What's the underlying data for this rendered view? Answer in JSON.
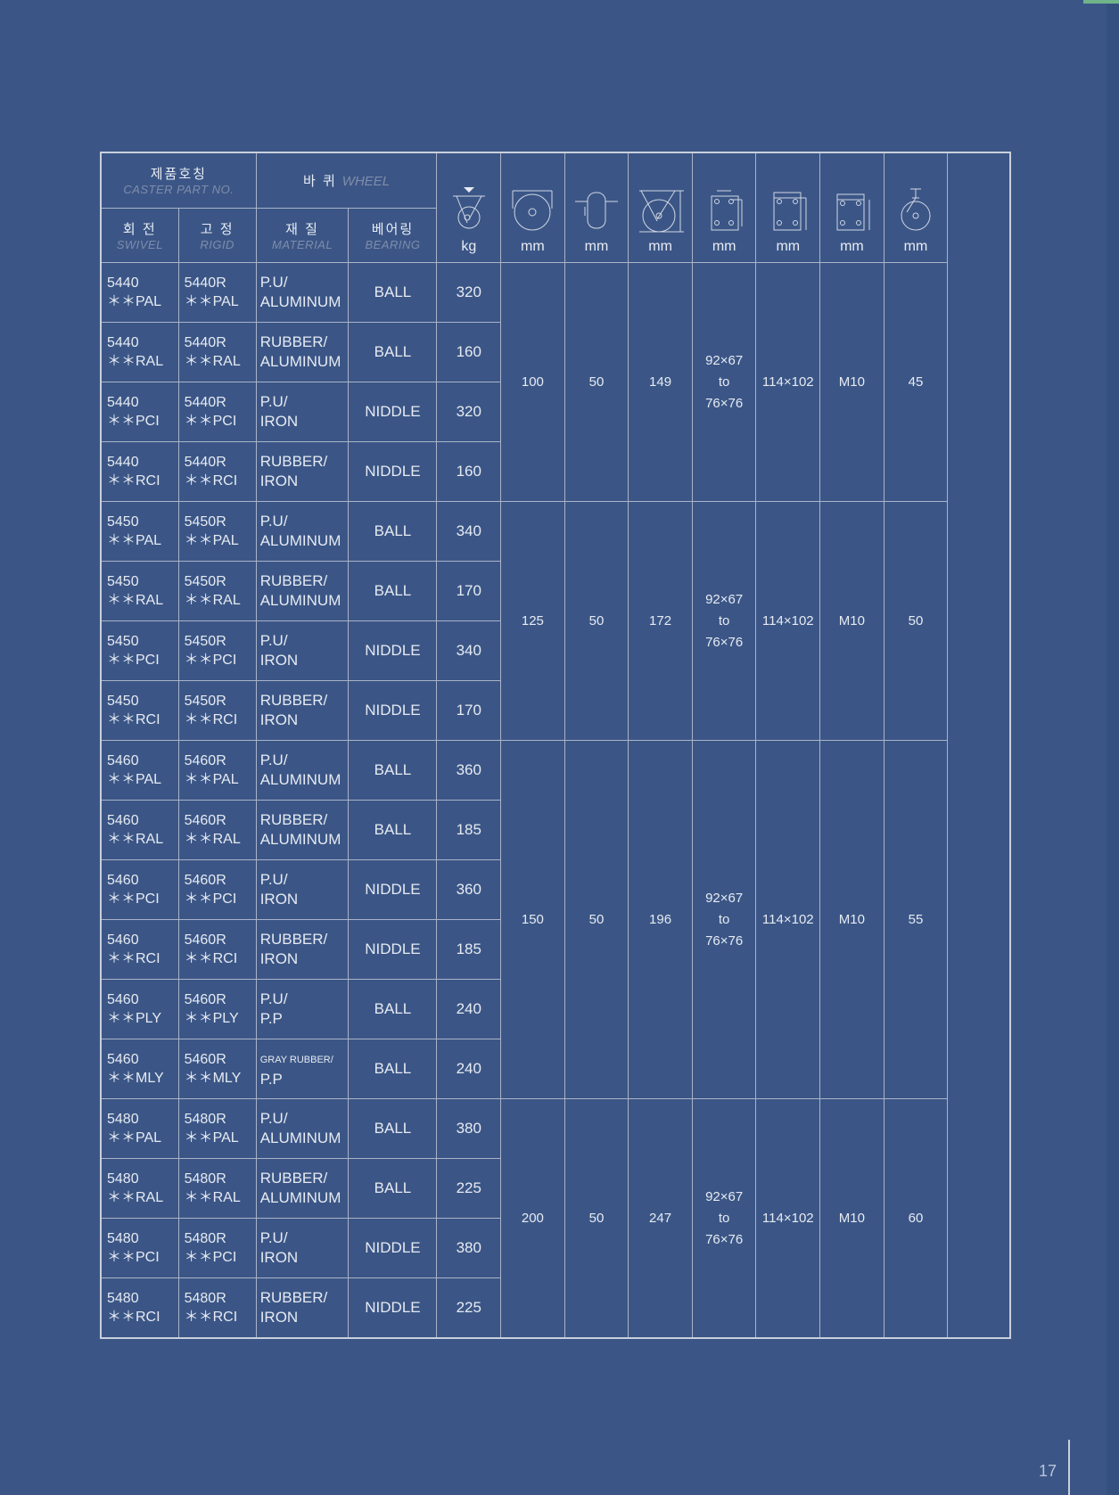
{
  "header": {
    "part_no_ko": "제품호칭",
    "part_no_en": "CASTER PART NO.",
    "wheel_ko": "바 퀴",
    "wheel_en": "WHEEL",
    "swivel_ko": "회 전",
    "swivel_en": "SWIVEL",
    "rigid_ko": "고 정",
    "rigid_en": "RIGID",
    "material_ko": "재 질",
    "material_en": "MATERIAL",
    "bearing_ko": "베어링",
    "bearing_en": "BEARING",
    "units": [
      "kg",
      "mm",
      "mm",
      "mm",
      "mm",
      "mm",
      "mm",
      "mm"
    ],
    "unit_icons": [
      "load-capacity-icon",
      "wheel-diameter-icon",
      "wheel-width-icon",
      "overall-height-icon",
      "bolt-hole-spacing-icon",
      "top-plate-size-icon",
      "bolt-size-icon",
      "swivel-radius-icon"
    ]
  },
  "rows": [
    {
      "swivel": [
        "5440",
        "＊＊PAL"
      ],
      "rigid": [
        "5440R",
        "＊＊PAL"
      ],
      "material": [
        "P.U/",
        "ALUMINUM"
      ],
      "bearing": "BALL",
      "load": "320"
    },
    {
      "swivel": [
        "5440",
        "＊＊RAL"
      ],
      "rigid": [
        "5440R",
        "＊＊RAL"
      ],
      "material": [
        "RUBBER/",
        "ALUMINUM"
      ],
      "bearing": "BALL",
      "load": "160"
    },
    {
      "swivel": [
        "5440",
        "＊＊PCI"
      ],
      "rigid": [
        "5440R",
        "＊＊PCI"
      ],
      "material": [
        "P.U/",
        "IRON"
      ],
      "bearing": "NIDDLE",
      "load": "320"
    },
    {
      "swivel": [
        "5440",
        "＊＊RCI"
      ],
      "rigid": [
        "5440R",
        "＊＊RCI"
      ],
      "material": [
        "RUBBER/",
        "IRON"
      ],
      "bearing": "NIDDLE",
      "load": "160"
    },
    {
      "swivel": [
        "5450",
        "＊＊PAL"
      ],
      "rigid": [
        "5450R",
        "＊＊PAL"
      ],
      "material": [
        "P.U/",
        "ALUMINUM"
      ],
      "bearing": "BALL",
      "load": "340"
    },
    {
      "swivel": [
        "5450",
        "＊＊RAL"
      ],
      "rigid": [
        "5450R",
        "＊＊RAL"
      ],
      "material": [
        "RUBBER/",
        "ALUMINUM"
      ],
      "bearing": "BALL",
      "load": "170"
    },
    {
      "swivel": [
        "5450",
        "＊＊PCI"
      ],
      "rigid": [
        "5450R",
        "＊＊PCI"
      ],
      "material": [
        "P.U/",
        "IRON"
      ],
      "bearing": "NIDDLE",
      "load": "340"
    },
    {
      "swivel": [
        "5450",
        "＊＊RCI"
      ],
      "rigid": [
        "5450R",
        "＊＊RCI"
      ],
      "material": [
        "RUBBER/",
        "IRON"
      ],
      "bearing": "NIDDLE",
      "load": "170"
    },
    {
      "swivel": [
        "5460",
        "＊＊PAL"
      ],
      "rigid": [
        "5460R",
        "＊＊PAL"
      ],
      "material": [
        "P.U/",
        "ALUMINUM"
      ],
      "bearing": "BALL",
      "load": "360"
    },
    {
      "swivel": [
        "5460",
        "＊＊RAL"
      ],
      "rigid": [
        "5460R",
        "＊＊RAL"
      ],
      "material": [
        "RUBBER/",
        "ALUMINUM"
      ],
      "bearing": "BALL",
      "load": "185"
    },
    {
      "swivel": [
        "5460",
        "＊＊PCI"
      ],
      "rigid": [
        "5460R",
        "＊＊PCI"
      ],
      "material": [
        "P.U/",
        "IRON"
      ],
      "bearing": "NIDDLE",
      "load": "360"
    },
    {
      "swivel": [
        "5460",
        "＊＊RCI"
      ],
      "rigid": [
        "5460R",
        "＊＊RCI"
      ],
      "material": [
        "RUBBER/",
        "IRON"
      ],
      "bearing": "NIDDLE",
      "load": "185"
    },
    {
      "swivel": [
        "5460",
        "＊＊PLY"
      ],
      "rigid": [
        "5460R",
        "＊＊PLY"
      ],
      "material": [
        "P.U/",
        "P.P"
      ],
      "bearing": "BALL",
      "load": "240"
    },
    {
      "swivel": [
        "5460",
        "＊＊MLY"
      ],
      "rigid": [
        "5460R",
        "＊＊MLY"
      ],
      "material": [
        "GRAY RUBBER/",
        "P.P"
      ],
      "bearing": "BALL",
      "load": "240",
      "small_material": true
    },
    {
      "swivel": [
        "5480",
        "＊＊PAL"
      ],
      "rigid": [
        "5480R",
        "＊＊PAL"
      ],
      "material": [
        "P.U/",
        "ALUMINUM"
      ],
      "bearing": "BALL",
      "load": "380"
    },
    {
      "swivel": [
        "5480",
        "＊＊RAL"
      ],
      "rigid": [
        "5480R",
        "＊＊RAL"
      ],
      "material": [
        "RUBBER/",
        "ALUMINUM"
      ],
      "bearing": "BALL",
      "load": "225"
    },
    {
      "swivel": [
        "5480",
        "＊＊PCI"
      ],
      "rigid": [
        "5480R",
        "＊＊PCI"
      ],
      "material": [
        "P.U/",
        "IRON"
      ],
      "bearing": "NIDDLE",
      "load": "380"
    },
    {
      "swivel": [
        "5480",
        "＊＊RCI"
      ],
      "rigid": [
        "5480R",
        "＊＊RCI"
      ],
      "material": [
        "RUBBER/",
        "IRON"
      ],
      "bearing": "NIDDLE",
      "load": "225"
    }
  ],
  "groups": [
    {
      "rows": 4,
      "values": [
        "100",
        "50",
        "149",
        [
          "92×67",
          "to",
          "76×76"
        ],
        "114×102",
        "M10",
        "45"
      ]
    },
    {
      "rows": 4,
      "values": [
        "125",
        "50",
        "172",
        [
          "92×67",
          "to",
          "76×76"
        ],
        "114×102",
        "M10",
        "50"
      ]
    },
    {
      "rows": 6,
      "values": [
        "150",
        "50",
        "196",
        [
          "92×67",
          "to",
          "76×76"
        ],
        "114×102",
        "M10",
        "55"
      ]
    },
    {
      "rows": 4,
      "values": [
        "200",
        "50",
        "247",
        [
          "92×67",
          "to",
          "76×76"
        ],
        "114×102",
        "M10",
        "60"
      ]
    }
  ],
  "page_number": "17"
}
